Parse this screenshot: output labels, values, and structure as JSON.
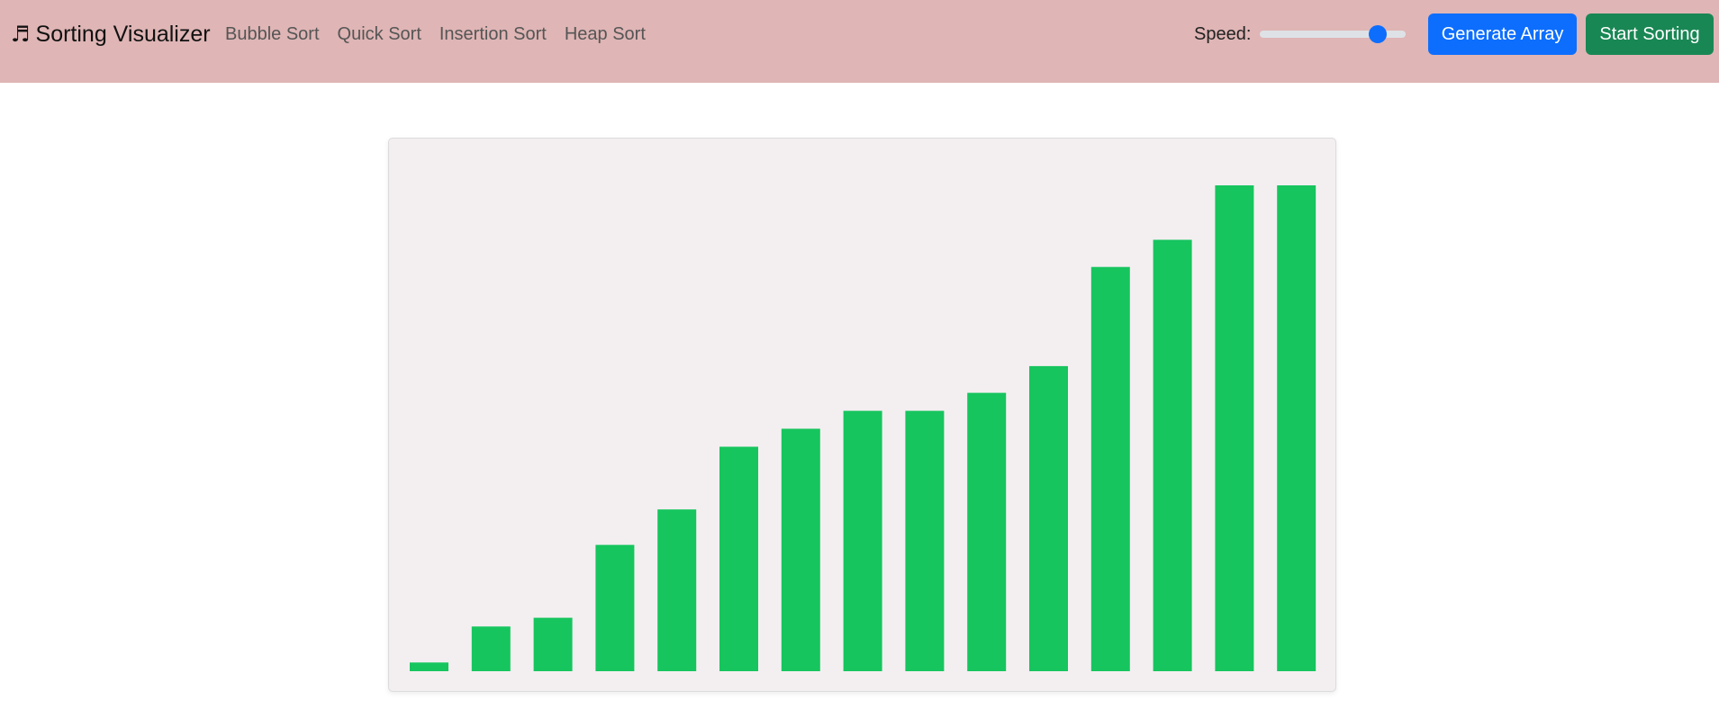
{
  "navbar": {
    "brand_icon": "music-note-icon",
    "brand_glyph": "♬",
    "brand_title": "Sorting Visualizer",
    "links": [
      "Bubble Sort",
      "Quick Sort",
      "Insertion Sort",
      "Heap Sort"
    ],
    "speed_label": "Speed:",
    "speed_value": 0.85,
    "generate_label": "Generate Array",
    "start_label": "Start Sorting"
  },
  "colors": {
    "navbar_bg": "#dfb5b5",
    "generate_btn": "#0d6efd",
    "start_btn": "#198754",
    "bar": "#16c55e",
    "slider_thumb": "#0d6efd"
  },
  "chart_data": {
    "type": "bar",
    "title": "",
    "xlabel": "",
    "ylabel": "",
    "ylim": [
      0,
      100
    ],
    "values": [
      1.8,
      9.2,
      11.0,
      26.0,
      33.3,
      46.2,
      49.9,
      53.6,
      53.6,
      57.3,
      62.8,
      83.2,
      88.8,
      100,
      100
    ]
  }
}
